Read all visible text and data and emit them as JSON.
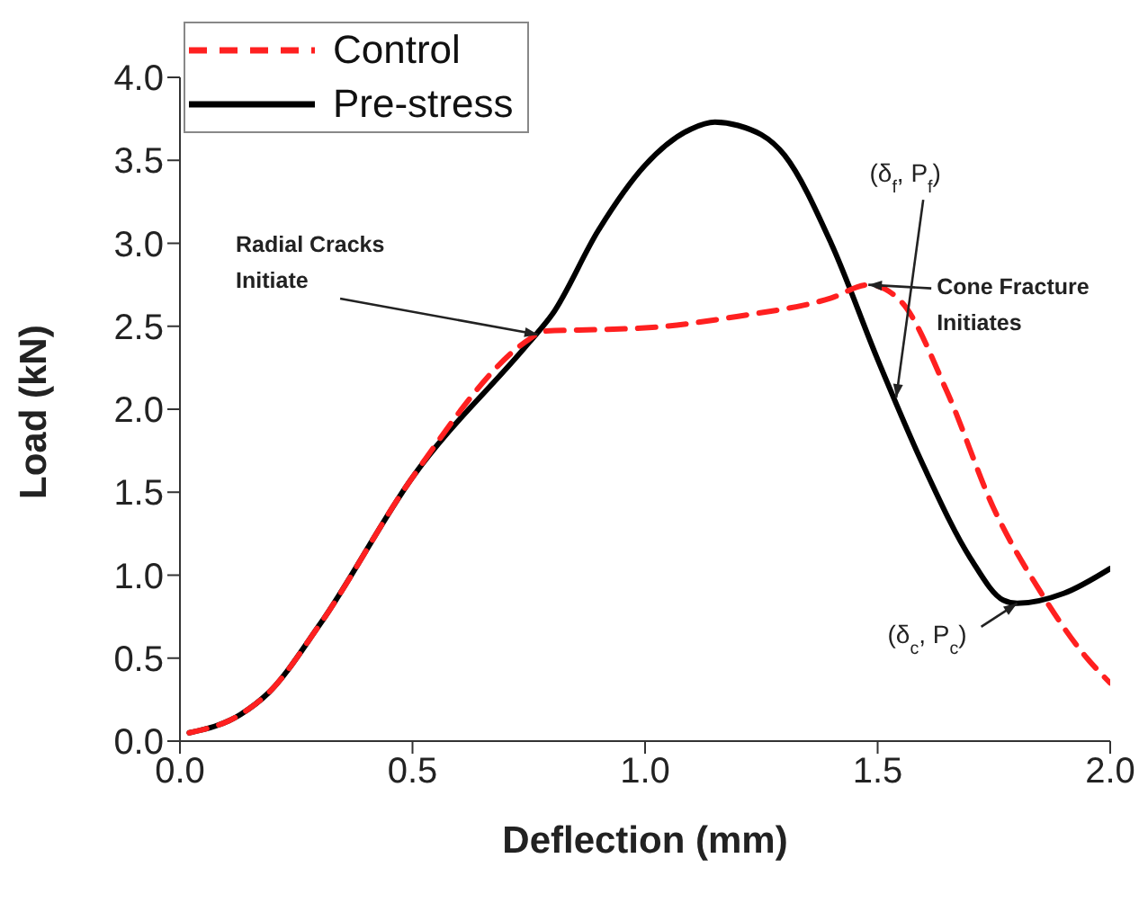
{
  "chart_data": {
    "type": "line",
    "xlabel": "Deflection (mm)",
    "ylabel": "Load (kN)",
    "xlim": [
      0,
      2.0
    ],
    "xticks": [
      {
        "value": 0,
        "label": "0.0"
      },
      0.5,
      {
        "value": 1,
        "label": "1.0"
      },
      1.5,
      {
        "value": 2,
        "label": "2.0"
      }
    ],
    "ylim": [
      0,
      4.0
    ],
    "yticks": [
      {
        "value": 0,
        "label": "0.0"
      },
      0.5,
      {
        "value": 1,
        "label": "1.0"
      },
      1.5,
      {
        "value": 2,
        "label": "2.0"
      },
      2.5,
      {
        "value": 3,
        "label": "3.0"
      },
      3.5,
      {
        "value": 4,
        "label": "4.0"
      }
    ],
    "grid": false,
    "legend": "top left",
    "marker": "none",
    "series": [
      {
        "name": "Control",
        "color": "#ff2020",
        "line_style": "dashed",
        "x": [
          0.02,
          0.13,
          0.19,
          0.3,
          0.5,
          0.75,
          0.78,
          0.9,
          1.0,
          1.2,
          1.4,
          1.48,
          1.55,
          1.65,
          1.75,
          1.85,
          1.95,
          2.0
        ],
        "values": [
          0.05,
          0.16,
          0.29,
          0.7,
          1.59,
          2.42,
          2.47,
          2.48,
          2.49,
          2.56,
          2.67,
          2.75,
          2.65,
          2.1,
          1.4,
          0.9,
          0.5,
          0.35
        ]
      },
      {
        "name": "Pre-stress",
        "color": "#000000",
        "line_style": "solid",
        "x": [
          0.02,
          0.13,
          0.19,
          0.3,
          0.5,
          0.75,
          0.8,
          0.9,
          1.0,
          1.1,
          1.15,
          1.2,
          1.3,
          1.4,
          1.5,
          1.6,
          1.7,
          1.77,
          1.8,
          1.9,
          2.0
        ],
        "values": [
          0.05,
          0.16,
          0.29,
          0.7,
          1.59,
          2.4,
          2.57,
          3.08,
          3.47,
          3.69,
          3.73,
          3.71,
          3.53,
          3.0,
          2.3,
          1.65,
          1.1,
          0.85,
          0.83,
          0.89,
          1.04
        ]
      }
    ],
    "annotations": [
      {
        "text": "Radial Cracks Initiate",
        "x": 0.77,
        "y": 2.45
      },
      {
        "text": "Cone Fracture Initiates",
        "x": 1.48,
        "y": 2.75
      },
      {
        "text": "(δ$_{f}$, P$_{f}$)",
        "x": 1.54,
        "y": 2.07
      },
      {
        "text": "(δ$_{c}$, P$_{c}$)",
        "x": 1.8,
        "y": 0.83
      }
    ]
  }
}
